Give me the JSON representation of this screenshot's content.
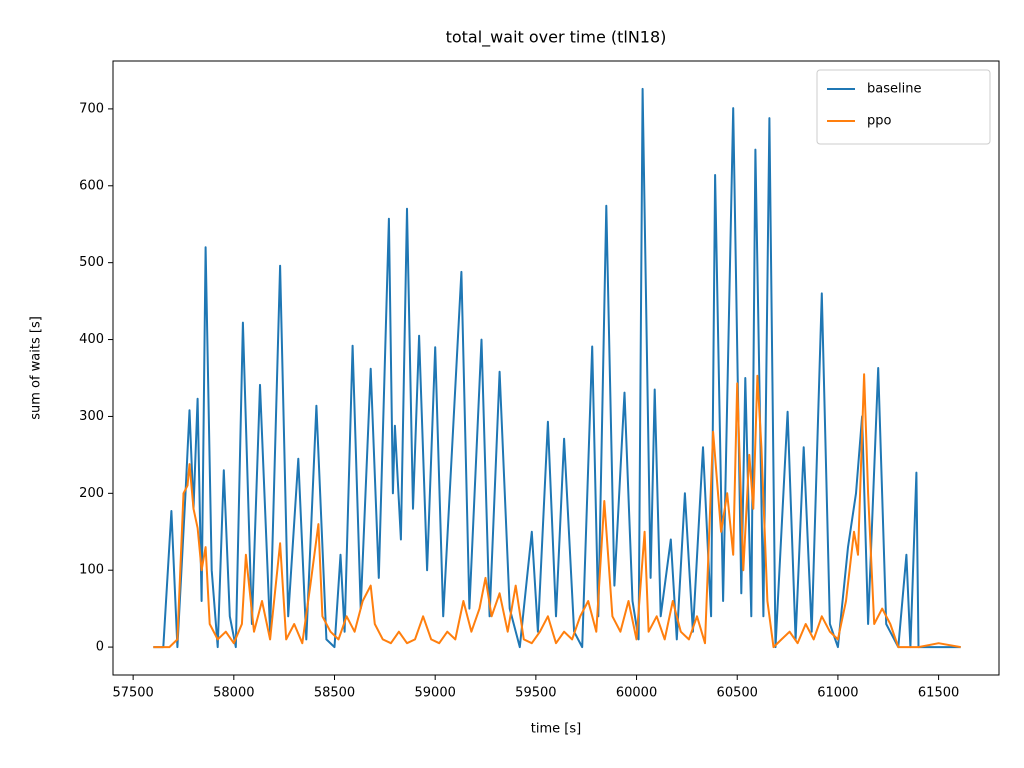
{
  "chart_data": {
    "type": "line",
    "title": "total_wait over time (tlN18)",
    "x_label": "time [s]",
    "y_label": "sum of waits [s]",
    "xlim": [
      57400,
      61800
    ],
    "ylim": [
      -36.3,
      762.3
    ],
    "xticks": [
      57500,
      58000,
      58500,
      59000,
      59500,
      60000,
      60500,
      61000,
      61500
    ],
    "yticks": [
      0,
      100,
      200,
      300,
      400,
      500,
      600,
      700
    ],
    "grid": false,
    "legend": "upper right",
    "series": [
      {
        "name": "baseline",
        "color": "#1f77b4",
        "x": [
          57600,
          57650,
          57690,
          57720,
          57760,
          57780,
          57800,
          57820,
          57840,
          57860,
          57890,
          57920,
          57950,
          57980,
          58010,
          58045,
          58090,
          58130,
          58180,
          58230,
          58270,
          58320,
          58360,
          58410,
          58460,
          58500,
          58530,
          58550,
          58590,
          58630,
          58680,
          58720,
          58770,
          58790,
          58800,
          58830,
          58860,
          58890,
          58920,
          58960,
          59000,
          59040,
          59070,
          59130,
          59170,
          59230,
          59270,
          59320,
          59370,
          59420,
          59480,
          59510,
          59560,
          59600,
          59640,
          59690,
          59730,
          59780,
          59810,
          59850,
          59890,
          59940,
          59980,
          60010,
          60030,
          60070,
          60090,
          60120,
          60170,
          60200,
          60240,
          60280,
          60330,
          60370,
          60390,
          60430,
          60480,
          60520,
          60540,
          60570,
          60590,
          60630,
          60660,
          60690,
          60750,
          60790,
          60830,
          60870,
          60920,
          60960,
          61000,
          61050,
          61090,
          61120,
          61150,
          61200,
          61240,
          61300,
          61340,
          61360,
          61390,
          61400,
          61610
        ],
        "values": [
          0,
          0,
          177,
          0,
          200,
          308,
          180,
          323,
          60,
          520,
          100,
          0,
          230,
          40,
          0,
          422,
          30,
          341,
          20,
          496,
          40,
          245,
          10,
          314,
          10,
          0,
          120,
          20,
          392,
          50,
          362,
          90,
          557,
          200,
          288,
          140,
          570,
          180,
          405,
          100,
          390,
          40,
          190,
          488,
          50,
          400,
          40,
          358,
          50,
          0,
          150,
          20,
          293,
          40,
          271,
          20,
          0,
          391,
          40,
          574,
          80,
          331,
          60,
          10,
          726,
          90,
          335,
          40,
          140,
          10,
          200,
          20,
          260,
          40,
          614,
          60,
          701,
          70,
          350,
          40,
          647,
          40,
          688,
          0,
          306,
          10,
          260,
          20,
          460,
          30,
          0,
          130,
          200,
          300,
          30,
          363,
          30,
          0,
          120,
          0,
          227,
          0,
          0
        ]
      },
      {
        "name": "ppo",
        "color": "#ff7f0e",
        "x": [
          57600,
          57680,
          57720,
          57750,
          57770,
          57780,
          57800,
          57820,
          57840,
          57860,
          57880,
          57920,
          57960,
          58000,
          58040,
          58060,
          58100,
          58140,
          58180,
          58230,
          58260,
          58300,
          58340,
          58380,
          58420,
          58440,
          58480,
          58520,
          58560,
          58600,
          58640,
          58680,
          58700,
          58740,
          58780,
          58820,
          58860,
          58900,
          58940,
          58980,
          59020,
          59060,
          59100,
          59140,
          59180,
          59220,
          59250,
          59280,
          59320,
          59360,
          59400,
          59440,
          59480,
          59520,
          59560,
          59600,
          59640,
          59680,
          59720,
          59760,
          59800,
          59840,
          59880,
          59920,
          59960,
          60000,
          60040,
          60060,
          60100,
          60140,
          60180,
          60220,
          60260,
          60300,
          60340,
          60380,
          60420,
          60450,
          60480,
          60500,
          60530,
          60560,
          60580,
          60600,
          60620,
          60650,
          60680,
          60720,
          60760,
          60800,
          60840,
          60880,
          60920,
          60960,
          61000,
          61040,
          61080,
          61100,
          61130,
          61150,
          61180,
          61220,
          61260,
          61300,
          61400,
          61500,
          61610
        ],
        "values": [
          0,
          0,
          10,
          200,
          210,
          238,
          180,
          155,
          100,
          130,
          30,
          10,
          20,
          5,
          30,
          120,
          20,
          60,
          10,
          135,
          10,
          30,
          5,
          80,
          160,
          40,
          20,
          10,
          40,
          20,
          60,
          80,
          30,
          10,
          5,
          20,
          5,
          10,
          40,
          10,
          5,
          20,
          10,
          60,
          20,
          50,
          90,
          40,
          70,
          20,
          80,
          10,
          5,
          20,
          40,
          5,
          20,
          10,
          40,
          60,
          20,
          190,
          40,
          20,
          60,
          10,
          150,
          20,
          40,
          10,
          60,
          20,
          10,
          40,
          5,
          280,
          150,
          200,
          120,
          343,
          100,
          250,
          180,
          353,
          260,
          60,
          0,
          10,
          20,
          5,
          30,
          10,
          40,
          20,
          10,
          60,
          150,
          120,
          355,
          200,
          30,
          50,
          30,
          0,
          0,
          5,
          0
        ]
      }
    ]
  }
}
